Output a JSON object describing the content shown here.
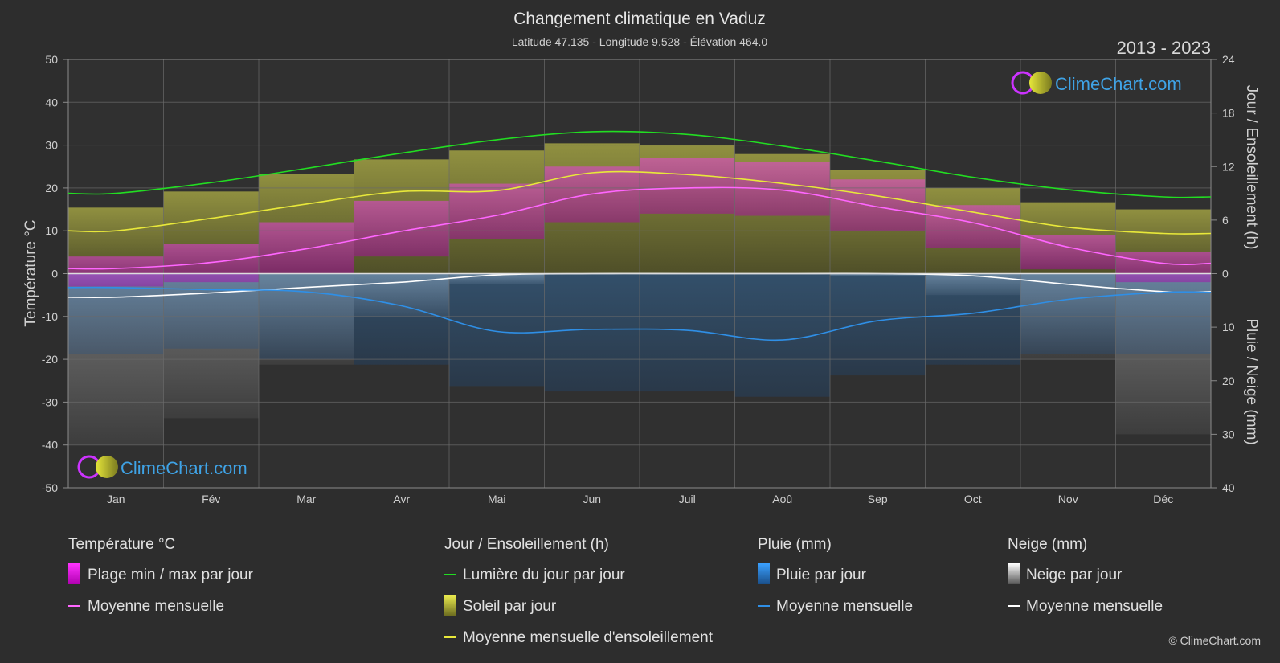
{
  "header": {
    "title": "Changement climatique en Vaduz",
    "subtitle": "Latitude 47.135 - Longitude 9.528 - Élévation 464.0",
    "period": "2013 - 2023"
  },
  "logo": {
    "text": "ClimeChart.com"
  },
  "copyright": "© ClimeChart.com",
  "axes": {
    "left_title": "Température °C",
    "right_top_title": "Jour / Ensoleillement (h)",
    "right_bottom_title": "Pluie / Neige (mm)",
    "left_ticks": [
      "50",
      "40",
      "30",
      "20",
      "10",
      "0",
      "-10",
      "-20",
      "-30",
      "-40",
      "-50"
    ],
    "right_top_ticks": [
      "24",
      "18",
      "12",
      "6",
      "0"
    ],
    "right_bottom_ticks": [
      "10",
      "20",
      "30",
      "40"
    ]
  },
  "legend": {
    "temperature": {
      "heading": "Température °C",
      "range": "Plage min / max par jour",
      "mean": "Moyenne mensuelle"
    },
    "sun": {
      "heading": "Jour / Ensoleillement (h)",
      "daylight": "Lumière du jour par jour",
      "sunshine": "Soleil par jour",
      "mean": "Moyenne mensuelle d'ensoleillement"
    },
    "rain": {
      "heading": "Pluie (mm)",
      "daily": "Pluie par jour",
      "mean": "Moyenne mensuelle"
    },
    "snow": {
      "heading": "Neige (mm)",
      "daily": "Neige par jour",
      "mean": "Moyenne mensuelle"
    }
  },
  "chart_data": {
    "type": "line",
    "x": [
      "Jan",
      "Fév",
      "Mar",
      "Avr",
      "Mai",
      "Jun",
      "Juil",
      "Aoû",
      "Sep",
      "Oct",
      "Nov",
      "Déc"
    ],
    "ylim_left": [
      -50,
      50
    ],
    "ylim_right_top": [
      0,
      24
    ],
    "ylim_right_bottom": [
      0,
      40
    ],
    "grid": true,
    "series": [
      {
        "name": "Lumière du jour par jour",
        "axis": "sun_h",
        "color": "#22dd22",
        "values": [
          9.0,
          10.2,
          11.8,
          13.5,
          15.0,
          15.9,
          15.6,
          14.3,
          12.6,
          10.8,
          9.4,
          8.6
        ]
      },
      {
        "name": "Moyenne mensuelle d'ensoleillement",
        "axis": "sun_h",
        "color": "#e8e83a",
        "values": [
          4.8,
          6.2,
          7.8,
          9.2,
          9.3,
          11.3,
          11.1,
          10.1,
          8.7,
          6.9,
          5.2,
          4.5
        ]
      },
      {
        "name": "Moyenne mensuelle",
        "kind": "temperature",
        "axis": "temp_c",
        "color": "#ff66ff",
        "values": [
          1.2,
          2.6,
          5.8,
          9.9,
          13.6,
          18.6,
          20.0,
          19.5,
          15.6,
          11.9,
          6.2,
          2.4
        ]
      },
      {
        "name": "Moyenne mensuelle",
        "kind": "snow",
        "axis": "temp_c",
        "color": "#ffffff",
        "values": [
          -5.5,
          -4.5,
          -3.2,
          -2.0,
          -0.3,
          0.0,
          0.0,
          0.0,
          0.0,
          -0.5,
          -2.5,
          -4.2
        ]
      },
      {
        "name": "Moyenne mensuelle",
        "kind": "rain",
        "axis": "precip_mm",
        "color": "#2f8fe6",
        "values": [
          2.6,
          3.0,
          3.4,
          6.0,
          10.8,
          10.4,
          10.6,
          12.4,
          8.8,
          7.4,
          4.8,
          3.5
        ]
      }
    ],
    "bands": {
      "temp_max": [
        4,
        7,
        12,
        17,
        21,
        25,
        27,
        26,
        22,
        16,
        9,
        5
      ],
      "temp_min": [
        -3,
        -2,
        0,
        4,
        8,
        12,
        14,
        13.5,
        10,
        6,
        1,
        -2
      ],
      "sunshine_h": [
        7.4,
        9.2,
        11.2,
        12.8,
        13.8,
        14.6,
        14.4,
        13.4,
        11.6,
        9.6,
        8.0,
        7.2
      ],
      "rain_mm": [
        15,
        14,
        16,
        17,
        21,
        22,
        22,
        23,
        19,
        17,
        15,
        15
      ],
      "snow_mm": [
        32,
        27,
        17,
        8,
        2,
        0,
        0,
        0,
        0.5,
        4,
        16,
        30
      ]
    }
  }
}
